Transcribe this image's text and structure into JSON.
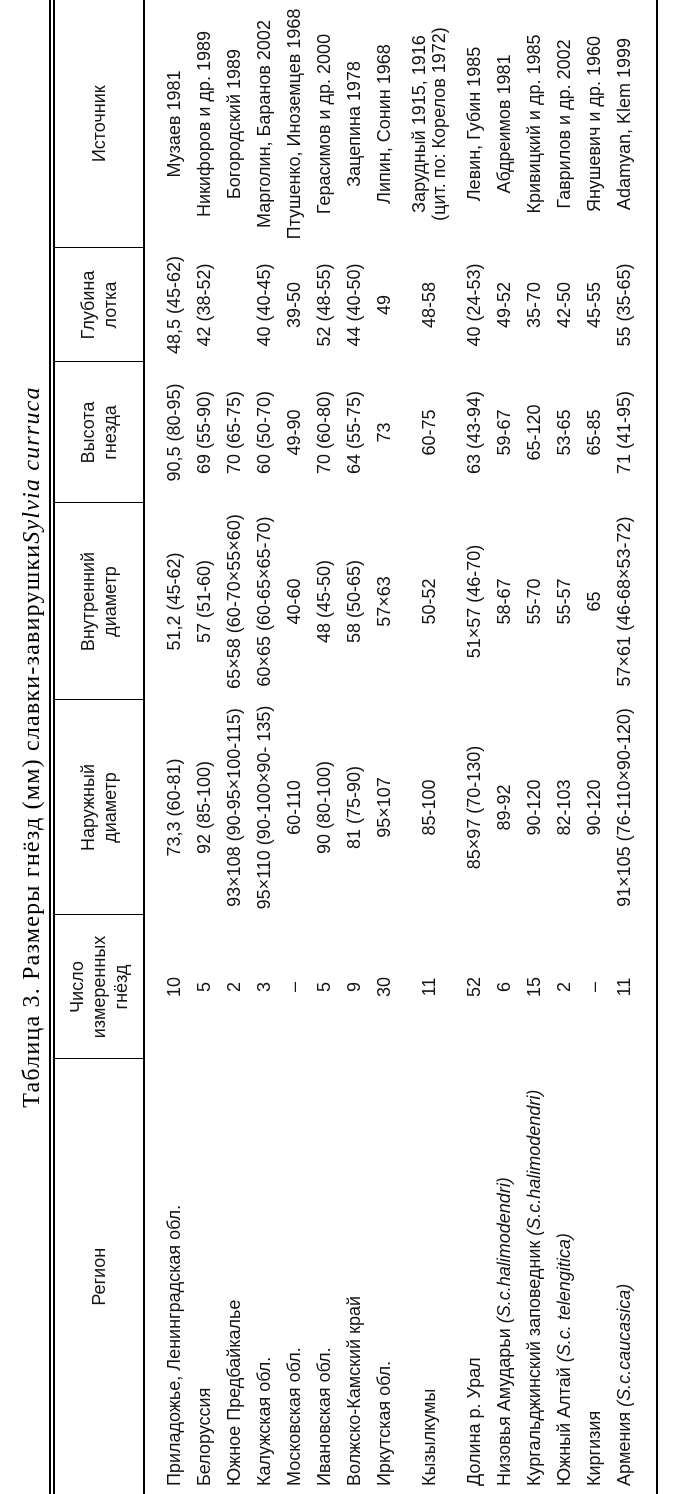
{
  "title": {
    "text": "Таблица 3. Размеры гнёзд (мм) славки-завирушки ",
    "species_italic": "Sylvia curruca"
  },
  "colors": {
    "background": "#ffffff",
    "text": "#141414",
    "rule": "#000000"
  },
  "table": {
    "columns": [
      {
        "key": "region",
        "label_lines": [
          "Регион"
        ]
      },
      {
        "key": "nest_count",
        "label_lines": [
          "Число",
          "измеренных",
          "гнёзд"
        ]
      },
      {
        "key": "outer_diameter",
        "label_lines": [
          "Наружный",
          "диаметр"
        ]
      },
      {
        "key": "inner_diameter",
        "label_lines": [
          "Внутренний",
          "диаметр"
        ]
      },
      {
        "key": "nest_height",
        "label_lines": [
          "Высота",
          "гнезда"
        ]
      },
      {
        "key": "tray_depth",
        "label_lines": [
          "Глубина",
          "лотка"
        ]
      },
      {
        "key": "source",
        "label_lines": [
          "Источник"
        ]
      }
    ],
    "rows": [
      {
        "region": "Приладожье, Ленинградская обл.",
        "region_latin": "",
        "nest_count": "10",
        "outer_diameter": "73,3 (60-81)",
        "inner_diameter": "51,2 (45-62)",
        "nest_height": "90,5 (80-95)",
        "tray_depth": "48,5 (45-62)",
        "source_lines": [
          "Музаев 1981"
        ]
      },
      {
        "region": "Белоруссия",
        "region_latin": "",
        "nest_count": "5",
        "outer_diameter": "92 (85-100)",
        "inner_diameter": "57 (51-60)",
        "nest_height": "69 (55-90)",
        "tray_depth": "42 (38-52)",
        "source_lines": [
          "Никифоров и др. 1989"
        ]
      },
      {
        "region": "Южное Предбайкалье",
        "region_latin": "",
        "nest_count": "2",
        "outer_diameter": "93×108 (90-95×100-115)",
        "inner_diameter": "65×58 (60-70×55×60)",
        "nest_height": "70 (65-75)",
        "tray_depth": "",
        "source_lines": [
          "Богородский 1989"
        ]
      },
      {
        "region": "Калужская обл.",
        "region_latin": "",
        "nest_count": "3",
        "outer_diameter": "95×110 (90-100×90- 135)",
        "inner_diameter": "60×65 (60-65×65-70)",
        "nest_height": "60 (50-70)",
        "tray_depth": "40 (40-45)",
        "source_lines": [
          "Марголин, Баранов 2002"
        ]
      },
      {
        "region": "Московская обл.",
        "region_latin": "",
        "nest_count": "–",
        "outer_diameter": "60-110",
        "inner_diameter": "40-60",
        "nest_height": "49-90",
        "tray_depth": "39-50",
        "source_lines": [
          "Птушенко, Иноземцев 1968"
        ]
      },
      {
        "region": "Ивановская обл.",
        "region_latin": "",
        "nest_count": "5",
        "outer_diameter": "90 (80-100)",
        "inner_diameter": "48 (45-50)",
        "nest_height": "70 (60-80)",
        "tray_depth": "52 (48-55)",
        "source_lines": [
          "Герасимов и др. 2000"
        ]
      },
      {
        "region": "Волжско-Камский край",
        "region_latin": "",
        "nest_count": "9",
        "outer_diameter": "81 (75-90)",
        "inner_diameter": "58 (50-65)",
        "nest_height": "64 (55-75)",
        "tray_depth": "44 (40-50)",
        "source_lines": [
          "Зацепина 1978"
        ]
      },
      {
        "region": "Иркутская обл.",
        "region_latin": "",
        "nest_count": "30",
        "outer_diameter": "95×107",
        "inner_diameter": "57×63",
        "nest_height": "73",
        "tray_depth": "49",
        "source_lines": [
          "Липин, Сонин 1968"
        ]
      },
      {
        "region": "Кызылкумы",
        "region_latin": "",
        "nest_count": "11",
        "outer_diameter": "85-100",
        "inner_diameter": "50-52",
        "nest_height": "60-75",
        "tray_depth": "48-58",
        "source_lines": [
          "Зарудный 1915, 1916",
          "(цит. по: Корелов 1972)"
        ]
      },
      {
        "region": "Долина р. Урал",
        "region_latin": "",
        "nest_count": "52",
        "outer_diameter": "85×97 (70-130)",
        "inner_diameter": "51×57 (46-70)",
        "nest_height": "63 (43-94)",
        "tray_depth": "40 (24-53)",
        "source_lines": [
          "Левин, Губин 1985"
        ]
      },
      {
        "region": "Низовья Амударьи ",
        "region_latin": "(S.c.halimodendri)",
        "nest_count": "6",
        "outer_diameter": "89-92",
        "inner_diameter": "58-67",
        "nest_height": "59-67",
        "tray_depth": "49-52",
        "source_lines": [
          "Абдреимов 1981"
        ]
      },
      {
        "region": "Кургальджинский заповедник ",
        "region_latin": "(S.c.halimodendri)",
        "nest_count": "15",
        "outer_diameter": "90-120",
        "inner_diameter": "55-70",
        "nest_height": "65-120",
        "tray_depth": "35-70",
        "source_lines": [
          "Кривицкий и др. 1985"
        ]
      },
      {
        "region": "Южный Алтай ",
        "region_latin": "(S.c. telengitica)",
        "nest_count": "2",
        "outer_diameter": "82-103",
        "inner_diameter": "55-57",
        "nest_height": "53-65",
        "tray_depth": "42-50",
        "source_lines": [
          "Гаврилов и др. 2002"
        ]
      },
      {
        "region": "Киргизия",
        "region_latin": "",
        "nest_count": "–",
        "outer_diameter": "90-120",
        "inner_diameter": "65",
        "nest_height": "65-85",
        "tray_depth": "45-55",
        "source_lines": [
          "Янушевич и др. 1960"
        ]
      },
      {
        "region": "Армения ",
        "region_latin": "(S.c.caucasica)",
        "nest_count": "11",
        "outer_diameter": "91×105 (76-110×90-120)",
        "inner_diameter": "57×61 (46-68×53-72)",
        "nest_height": "71 (41-95)",
        "tray_depth": "55 (35-65)",
        "source_lines": [
          "Adamyan, Klem 1999"
        ]
      }
    ]
  }
}
